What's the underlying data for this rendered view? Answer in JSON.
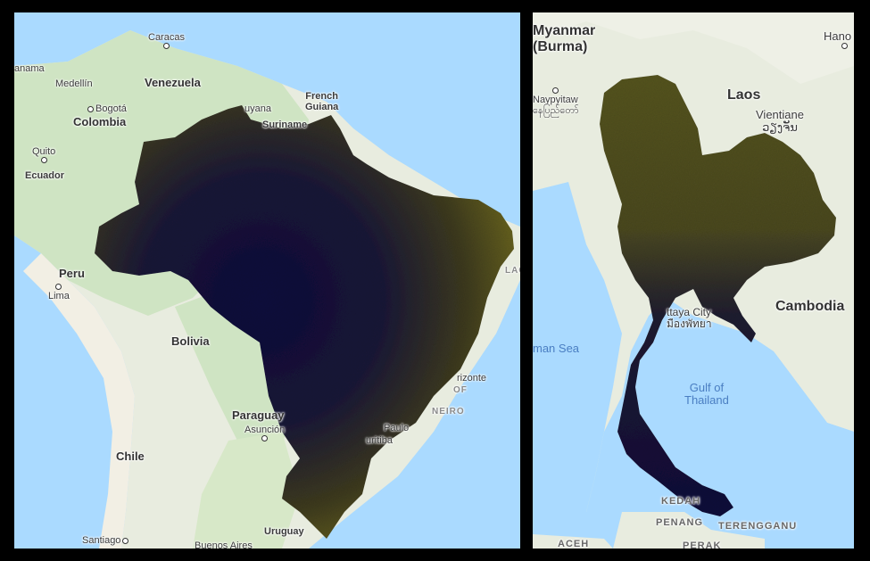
{
  "panels": {
    "left": {
      "labels": {
        "caracas": "Caracas",
        "panama": "anama",
        "medellin": "Medellín",
        "venezuela": "Venezuela",
        "bogota": "Bogotá",
        "colombia": "Colombia",
        "guyana": "uyana",
        "french_guiana_1": "French",
        "french_guiana_2": "Guiana",
        "suriname": "Suriname",
        "quito": "Quito",
        "ecuador": "Ecuador",
        "peru": "Peru",
        "lima": "Lima",
        "bolivia": "Bolivia",
        "paraguay": "Paraguay",
        "asuncion": "Asunción",
        "chile": "Chile",
        "santiago": "Santiago",
        "buenos_aires": "Buenos Aires",
        "uruguay": "Uruguay",
        "curitiba": "uritiba",
        "sao_paulo": "Paulo",
        "horizonte": "rizonte",
        "rio_of": "OF",
        "rio_neiro": "NEIRO",
        "lago": "LAGO"
      }
    },
    "right": {
      "labels": {
        "myanmar_1": "Myanmar",
        "myanmar_2": "(Burma)",
        "naypyitaw": "Naypyitaw",
        "naypyitaw_local": "နေပြည်တော်",
        "hanoi": "Hano",
        "laos": "Laos",
        "vientiane": "Vientiane",
        "vientiane_local": "ວຽງຈັນ",
        "cambodia": "Cambodia",
        "pattaya_1": "ttaya City",
        "pattaya_2": "มืองพัทยา",
        "andaman_sea": "man Sea",
        "gulf_1": "Gulf of",
        "gulf_2": "Thailand",
        "kedah": "KEDAH",
        "penang": "PENANG",
        "terengganu": "TERENGGANU",
        "aceh": "ACEH",
        "perak": "PERAK"
      }
    }
  },
  "colors": {
    "ocean": "#aadaff",
    "land": "#e8ecdf",
    "forest": "#cfe4c3",
    "overlay_dark": "#0d0a3c",
    "overlay_mid": "#2a2a25",
    "overlay_light": "#6f6a1f"
  }
}
